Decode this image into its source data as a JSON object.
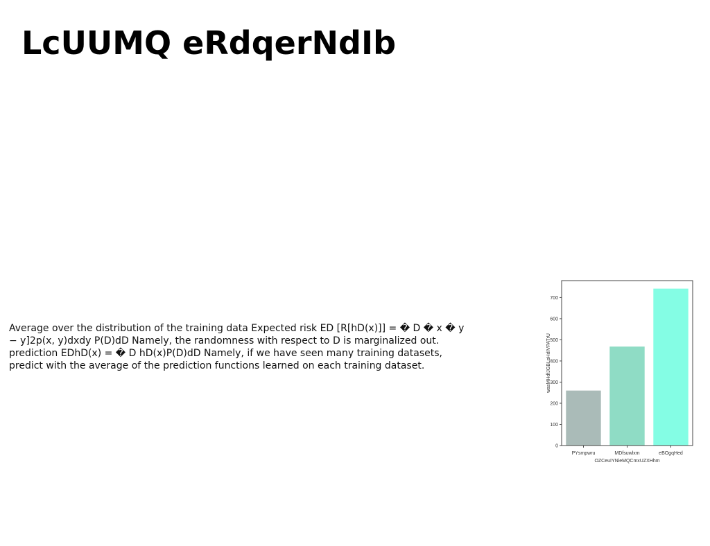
{
  "slide": {
    "title": "LcUUMQ eRdqerNdIb"
  },
  "body_text": {
    "lines": [
      "Average over the distribution of the training data Expected risk ED [R[hD(x)]] = � D � x � y",
      "− y]2p(x, y)dxdy P(D)dD Namely, the randomness with respect to D is marginalized out.",
      "prediction EDhD(x) = � D hD(x)P(D)dD Namely, if we have seen many training datasets,",
      "predict with the average of the prediction functions learned on each training dataset."
    ]
  },
  "chart_data": {
    "type": "bar",
    "categories": [
      "PYsmpwru",
      "MDfsuwlxm",
      "eBOgqHed"
    ],
    "values": [
      260,
      468,
      742
    ],
    "colors": [
      "#aabbb8",
      "#8fdcc5",
      "#84fde4"
    ],
    "title": "",
    "xlabel": "OZCeuIYNieMQCmxUZXHhm",
    "ylabel": "wasMHdfJGBLpHdIVPATrU",
    "ylim": [
      0,
      780
    ],
    "yticks": [
      0,
      100,
      200,
      300,
      400,
      500,
      600,
      700
    ],
    "grid": false
  }
}
